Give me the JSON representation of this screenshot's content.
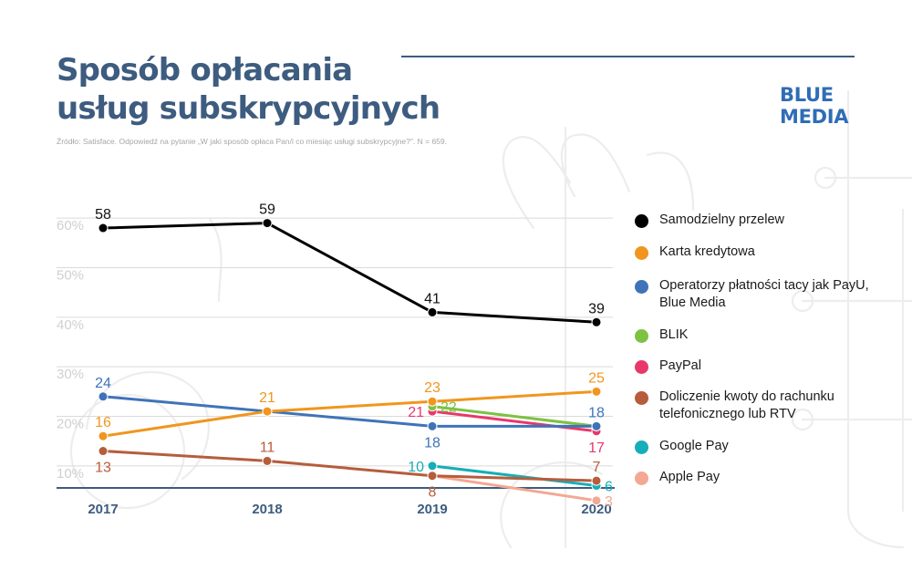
{
  "header": {
    "title_line1": "Sposób opłacania",
    "title_line2": "usług subskrypcyjnych",
    "source": "Źródło: Satisface. Odpowiedź na pytanie „W jaki sposób opłaca Pan/i co miesiąc usługi subskrypcyjne?\". N = 659."
  },
  "logo": {
    "line1": "BLUE",
    "line2": "MEDIA"
  },
  "colors": {
    "title": "#3d5c7f",
    "logo": "#2f6db5",
    "axis": "#3d5c7f",
    "grid": "#dadada",
    "tick_label": "#d0d0d0"
  },
  "chart_data": {
    "type": "line",
    "x": [
      "2017",
      "2018",
      "2019",
      "2020"
    ],
    "ylim": [
      5,
      65
    ],
    "yticks": [
      "10%",
      "20%",
      "30%",
      "40%",
      "50%",
      "60%"
    ],
    "ytick_values": [
      10,
      20,
      30,
      40,
      50,
      60
    ],
    "grid": true,
    "legend_position": "right",
    "series": [
      {
        "name": "Samodzielny przelew",
        "color": "#000000",
        "values": [
          58,
          59,
          41,
          39
        ],
        "labels": [
          "58",
          "59",
          "41",
          "39"
        ],
        "label_pos": [
          "above",
          "above",
          "above",
          "above"
        ]
      },
      {
        "name": "Karta kredytowa",
        "color": "#f0961e",
        "values": [
          16,
          21,
          23,
          25
        ],
        "labels": [
          "16",
          "21",
          "23",
          "25"
        ],
        "label_pos": [
          "above",
          "above",
          "above",
          "above"
        ]
      },
      {
        "name": "Operatorzy płatności tacy jak PayU, Blue Media",
        "color": "#3f73b8",
        "values": [
          24,
          21,
          18,
          18
        ],
        "labels": [
          "24",
          "",
          "18",
          "18"
        ],
        "label_pos": [
          "above",
          "none",
          "below",
          "above"
        ]
      },
      {
        "name": "BLIK",
        "color": "#7dc243",
        "values": [
          null,
          null,
          22,
          18
        ],
        "labels": [
          "",
          "",
          "22",
          ""
        ],
        "label_pos": [
          "none",
          "none",
          "right",
          "none"
        ]
      },
      {
        "name": "PayPal",
        "color": "#e8386b",
        "values": [
          null,
          null,
          21,
          17
        ],
        "labels": [
          "",
          "",
          "21",
          "17"
        ],
        "label_pos": [
          "none",
          "none",
          "left",
          "below"
        ]
      },
      {
        "name": "Doliczenie kwoty do rachunku telefonicznego lub RTV",
        "color": "#b55d3c",
        "values": [
          13,
          11,
          8,
          7
        ],
        "labels": [
          "13",
          "11",
          "8",
          "7"
        ],
        "label_pos": [
          "below",
          "above",
          "below",
          "above"
        ]
      },
      {
        "name": "Google Pay",
        "color": "#16aeb8",
        "values": [
          null,
          null,
          10,
          6
        ],
        "labels": [
          "",
          "",
          "10",
          "6"
        ],
        "label_pos": [
          "none",
          "none",
          "left",
          "right"
        ]
      },
      {
        "name": "Apple Pay",
        "color": "#f3a893",
        "values": [
          null,
          null,
          8,
          3
        ],
        "labels": [
          "",
          "",
          "",
          "3"
        ],
        "label_pos": [
          "none",
          "none",
          "none",
          "right"
        ]
      }
    ]
  }
}
